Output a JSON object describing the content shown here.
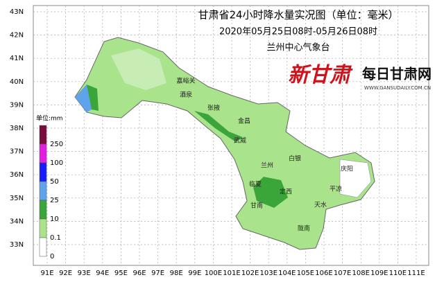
{
  "header": {
    "title": "甘肃省24小时降水量实况图（单位：毫米）",
    "period": "2020年05月25日08时-05月26日08时",
    "issuer": "兰州中心气象台"
  },
  "logo": {
    "brand": "新甘肃",
    "site": "每日甘肃网",
    "url": "WWW.GANSUDAILY.COM.CN"
  },
  "lat_labels": [
    "43N",
    "42N",
    "41N",
    "40N",
    "39N",
    "38N",
    "37N",
    "36N",
    "35N",
    "34N",
    "33N"
  ],
  "lon_labels": [
    "91E",
    "92E",
    "93E",
    "94E",
    "95E",
    "96E",
    "97E",
    "98E",
    "99E",
    "100E",
    "101E",
    "102E",
    "103E",
    "104E",
    "105E",
    "106E",
    "107E",
    "108E",
    "109E",
    "110E",
    "111E"
  ],
  "legend": {
    "unit": "单位:mm",
    "labels": [
      "250",
      "100",
      "50",
      "25",
      "10",
      "0.1",
      "0"
    ],
    "colors": [
      "#7a0b3d",
      "#e31ee3",
      "#1a1aff",
      "#5fa4ea",
      "#3aa63a",
      "#a9e38c",
      "#ffffff"
    ]
  },
  "cities": [
    "嘉峪关",
    "酒泉",
    "张掖",
    "金昌",
    "武威",
    "白银",
    "兰州",
    "庆阳",
    "临夏",
    "定西",
    "平凉",
    "天水",
    "甘南",
    "陇南"
  ]
}
